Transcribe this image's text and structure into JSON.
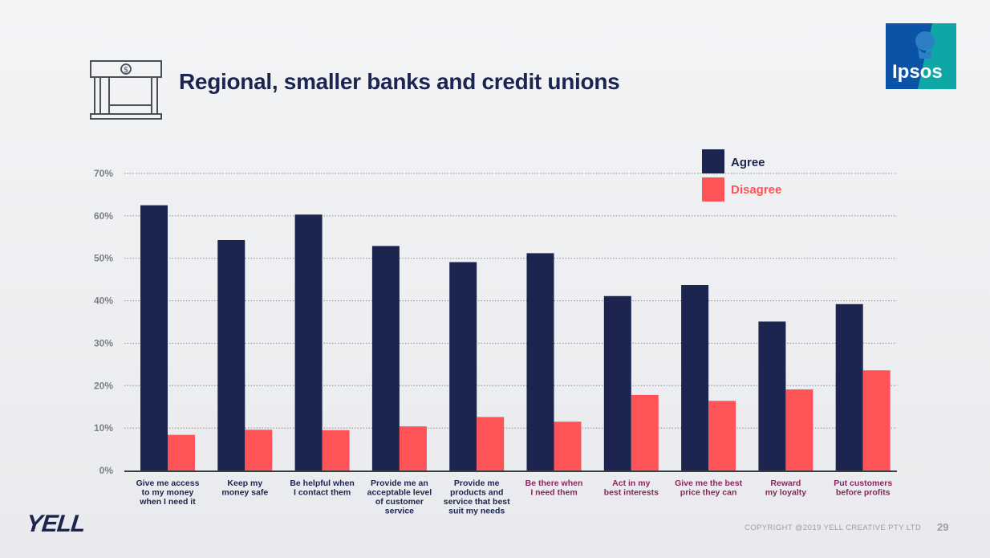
{
  "header": {
    "title": "Regional, smaller banks and credit unions",
    "bank_icon": "bank-building-icon",
    "logo_text": "Ipsos"
  },
  "colors": {
    "agree": "#1b2550",
    "disagree": "#fe5457",
    "category_dark": "#1b2550",
    "category_highlight": "#8b2660",
    "logo_blue": "#0b53a6",
    "logo_teal": "#0fa6a6"
  },
  "chart_data": {
    "type": "bar",
    "title": "",
    "xlabel": "",
    "ylabel": "",
    "ylim": [
      0,
      70
    ],
    "yticks": [
      "0%",
      "10%",
      "20%",
      "30%",
      "40%",
      "50%",
      "60%",
      "70%"
    ],
    "grid": true,
    "legend_position": "top-right",
    "categories": [
      "Give me access to my money when I need it",
      "Keep my money safe",
      "Be helpful when I contact them",
      "Provide me an acceptable level of customer service",
      "Provide me products and service that best suit my needs",
      "Be there when I need them",
      "Act in my best interests",
      "Give me the best price they can",
      "Reward my loyalty",
      "Put customers before profits"
    ],
    "category_lines": [
      [
        "Give me access",
        "to my money",
        "when I need it"
      ],
      [
        "Keep my",
        "money safe"
      ],
      [
        "Be helpful when",
        "I contact them"
      ],
      [
        "Provide me an",
        "acceptable level",
        "of customer",
        "service"
      ],
      [
        "Provide me",
        "products and",
        "service that best",
        "suit my needs"
      ],
      [
        "Be there when",
        "I need them"
      ],
      [
        "Act in my",
        "best interests"
      ],
      [
        "Give me the best",
        "price they can"
      ],
      [
        "Reward",
        "my loyalty"
      ],
      [
        "Put customers",
        "before profits"
      ]
    ],
    "category_highlighted": [
      false,
      false,
      false,
      false,
      false,
      true,
      true,
      true,
      true,
      true
    ],
    "series": [
      {
        "name": "Agree",
        "values": [
          62.5,
          54.3,
          60.3,
          52.9,
          49.1,
          51.2,
          41.1,
          43.7,
          35.1,
          39.2
        ]
      },
      {
        "name": "Disagree",
        "values": [
          8.4,
          9.6,
          9.5,
          10.4,
          12.6,
          11.5,
          17.8,
          16.4,
          19.1,
          23.6
        ]
      }
    ]
  },
  "footer": {
    "brand": "YELL",
    "copyright": "COPYRIGHT @2019 YELL CREATIVE PTY LTD",
    "page_number": "29"
  }
}
